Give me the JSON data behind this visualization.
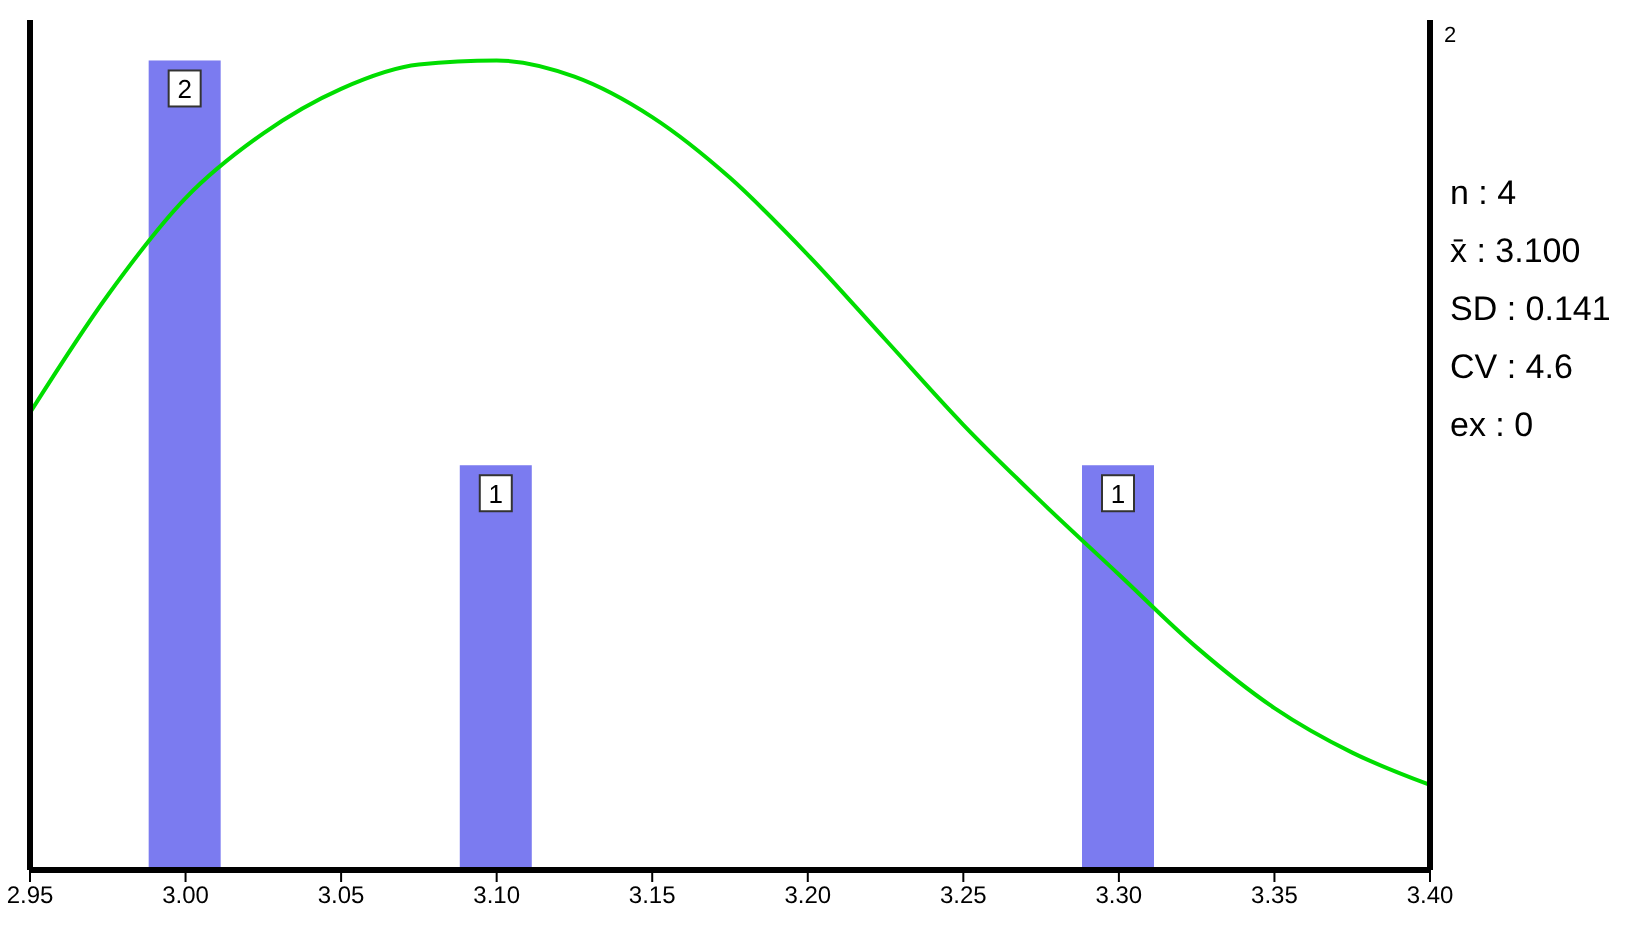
{
  "chart_data": {
    "type": "bar",
    "series": [
      {
        "color": "#7b7bf0",
        "x": [
          3.0,
          3.1,
          3.3
        ],
        "values": [
          2,
          1,
          1
        ],
        "value_labels": [
          "2",
          "1",
          "1"
        ]
      },
      {
        "type": "line",
        "color": "#00dd00",
        "x": [
          2.95,
          2.975,
          3.0,
          3.025,
          3.05,
          3.075,
          3.1,
          3.125,
          3.15,
          3.175,
          3.2,
          3.225,
          3.25,
          3.275,
          3.3,
          3.325,
          3.35,
          3.375,
          3.4
        ],
        "values": [
          1.13,
          1.42,
          1.66,
          1.82,
          1.93,
          1.99,
          2.0,
          1.96,
          1.86,
          1.71,
          1.52,
          1.31,
          1.1,
          0.91,
          0.73,
          0.55,
          0.4,
          0.29,
          0.21
        ]
      }
    ],
    "xlim": [
      2.95,
      3.4
    ],
    "xticks": [
      {
        "value": 2.95,
        "label": "2.95"
      },
      {
        "value": 3.0,
        "label": "3.00"
      },
      {
        "value": 3.05,
        "label": "3.05"
      },
      {
        "value": 3.1,
        "label": "3.10"
      },
      {
        "value": 3.15,
        "label": "3.15"
      },
      {
        "value": 3.2,
        "label": "3.20"
      },
      {
        "value": 3.25,
        "label": "3.25"
      },
      {
        "value": 3.3,
        "label": "3.30"
      },
      {
        "value": 3.35,
        "label": "3.35"
      },
      {
        "value": 3.4,
        "label": "3.40"
      }
    ],
    "ylim": [
      0,
      2.1
    ],
    "tick_labels": "x",
    "annotations": [
      "2",
      "n : 4",
      "x̄ : 3.100",
      "SD : 0.141",
      "CV : 4.6",
      "ex : 0"
    ]
  }
}
